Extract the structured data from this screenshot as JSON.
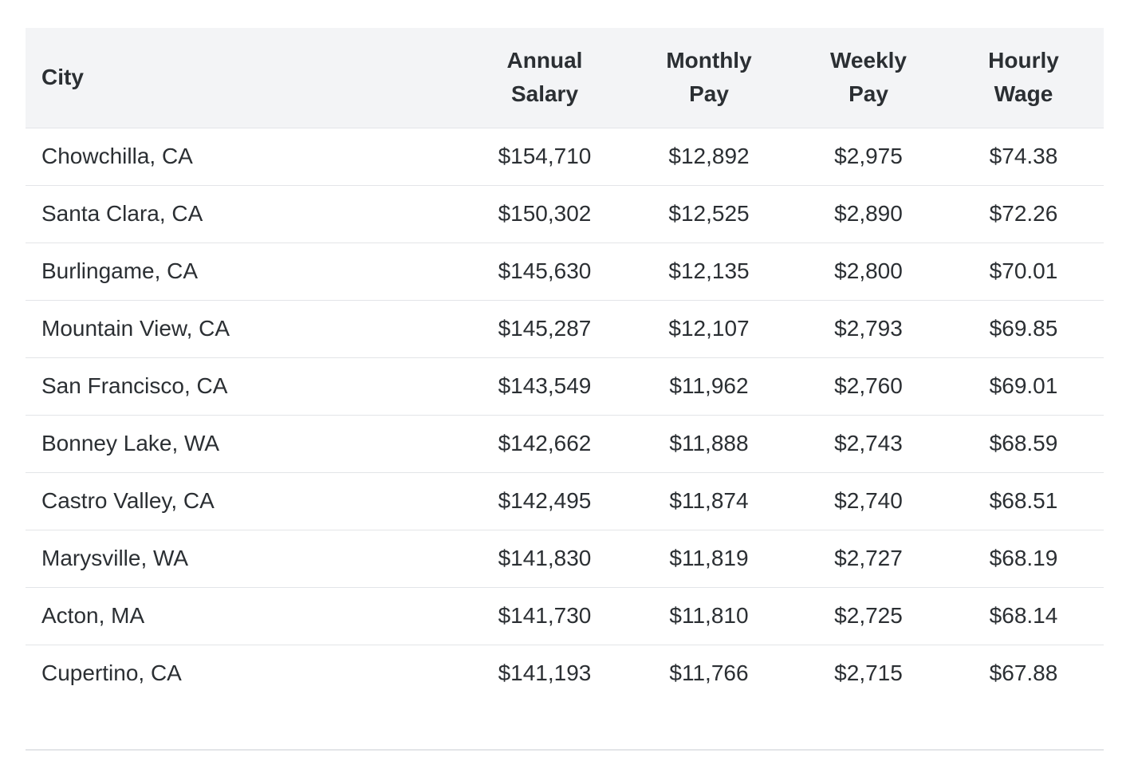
{
  "table": {
    "headers": [
      "City",
      "Annual Salary",
      "Monthly Pay",
      "Weekly Pay",
      "Hourly Wage"
    ],
    "rows": [
      [
        "Chowchilla, CA",
        "$154,710",
        "$12,892",
        "$2,975",
        "$74.38"
      ],
      [
        "Santa Clara, CA",
        "$150,302",
        "$12,525",
        "$2,890",
        "$72.26"
      ],
      [
        "Burlingame, CA",
        "$145,630",
        "$12,135",
        "$2,800",
        "$70.01"
      ],
      [
        "Mountain View, CA",
        "$145,287",
        "$12,107",
        "$2,793",
        "$69.85"
      ],
      [
        "San Francisco, CA",
        "$143,549",
        "$11,962",
        "$2,760",
        "$69.01"
      ],
      [
        "Bonney Lake, WA",
        "$142,662",
        "$11,888",
        "$2,743",
        "$68.59"
      ],
      [
        "Castro Valley, CA",
        "$142,495",
        "$11,874",
        "$2,740",
        "$68.51"
      ],
      [
        "Marysville, WA",
        "$141,830",
        "$11,819",
        "$2,727",
        "$68.19"
      ],
      [
        "Acton, MA",
        "$141,730",
        "$11,810",
        "$2,725",
        "$68.14"
      ],
      [
        "Cupertino, CA",
        "$141,193",
        "$11,766",
        "$2,715",
        "$67.88"
      ]
    ]
  }
}
